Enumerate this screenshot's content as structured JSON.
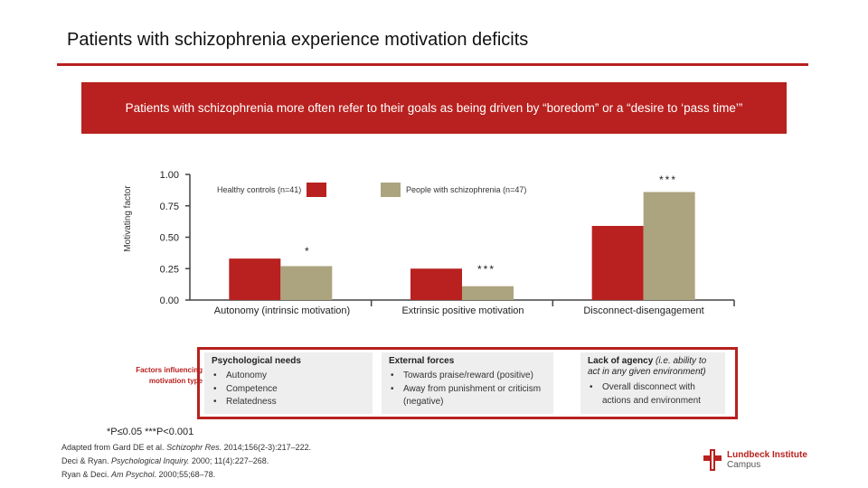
{
  "title": "Patients with schizophrenia experience motivation deficits",
  "banner": "Patients with schizophrenia more often refer to their goals as being driven by “boredom” or a “desire to ‘pass time’”",
  "colors": {
    "accent": "#b8211f",
    "healthy": "#b8211f",
    "patients": "#aca47f"
  },
  "chart_data": {
    "type": "bar",
    "ylabel": "Motivating factor",
    "ylim": [
      0,
      1
    ],
    "yticks": [
      "0.00",
      "0.25",
      "0.50",
      "0.75",
      "1.00"
    ],
    "categories": [
      "Autonomy (intrinsic motivation)",
      "Extrinsic positive motivation",
      "Disconnect-disengagement"
    ],
    "series": [
      {
        "name": "Healthy controls (n=41)",
        "values": [
          0.33,
          0.25,
          0.59
        ]
      },
      {
        "name": "People with schizophrenia (n=47)",
        "values": [
          0.27,
          0.11,
          0.86
        ]
      }
    ],
    "significance": [
      "*",
      "***",
      "***"
    ]
  },
  "factors": {
    "label": "Factors influencing motivation type",
    "boxes": [
      {
        "heading": "Psychological needs",
        "heading_extra": "",
        "items": [
          "Autonomy",
          "Competence",
          "Relatedness"
        ]
      },
      {
        "heading": "External forces",
        "heading_extra": "",
        "items": [
          "Towards praise/reward (positive)",
          "Away from punishment or criticism (negative)"
        ]
      },
      {
        "heading": "Lack of agency",
        "heading_extra": "(i.e. ability to act in any given environment)",
        "items": [
          "Overall disconnect with actions and environment"
        ]
      }
    ]
  },
  "footnote": "*P≤0.05 ***P<0.001",
  "refs": {
    "ref1_pre": "Adapted from Gard DE et al. ",
    "ref1_journal": "Schizophr Res.",
    "ref1_post": " 2014;156(2-3):217–222.",
    "ref2_pre": "Deci & Ryan. ",
    "ref2_journal": "Psychological Inquiry.",
    "ref2_post": " 2000; 11(4):227–268.",
    "ref3_pre": "Ryan & Deci. ",
    "ref3_journal": "Am Psychol.",
    "ref3_post": " 2000;55;68–78."
  },
  "logo": {
    "line1": "Lundbeck Institute",
    "line2": "Campus"
  }
}
